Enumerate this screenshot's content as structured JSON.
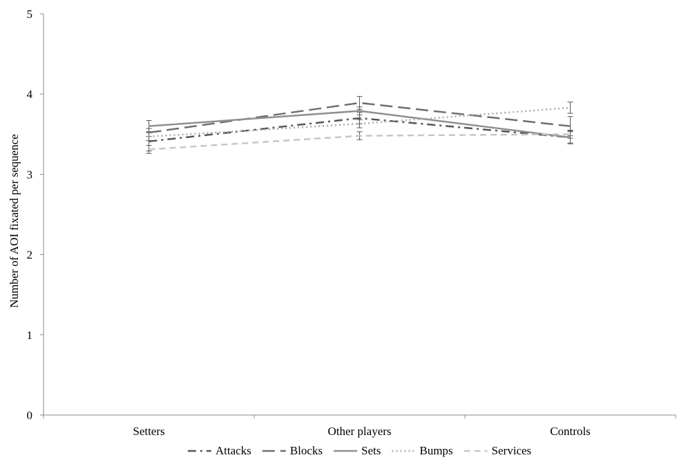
{
  "chart_data": {
    "type": "line",
    "categories": [
      "Setters",
      "Other players",
      "Controls"
    ],
    "ylabel": "Number of AOI fixated per sequence",
    "xlabel": "",
    "ylim": [
      0,
      5
    ],
    "yticks": [
      "0",
      "1",
      "2",
      "3",
      "4",
      "5"
    ],
    "grid": false,
    "legend_position": "bottom",
    "series": [
      {
        "name": "Attacks",
        "values": [
          3.41,
          3.7,
          3.46
        ],
        "error": [
          0.12,
          0.07,
          0.08
        ],
        "color": "#555555",
        "dash": "dashdot"
      },
      {
        "name": "Blocks",
        "values": [
          3.52,
          3.89,
          3.6
        ],
        "error": [
          0.05,
          0.08,
          0.12
        ],
        "color": "#6e6e6e",
        "dash": "longdash"
      },
      {
        "name": "Sets",
        "values": [
          3.6,
          3.79,
          3.46
        ],
        "error": [
          0.07,
          0.05,
          0.07
        ],
        "color": "#8f8f8f",
        "dash": "solid"
      },
      {
        "name": "Bumps",
        "values": [
          3.47,
          3.63,
          3.83
        ],
        "error": [
          0.05,
          0.05,
          0.07
        ],
        "color": "#a8a8a8",
        "dash": "dotted"
      },
      {
        "name": "Services",
        "values": [
          3.31,
          3.48,
          3.5
        ],
        "error": [
          0.05,
          0.05,
          0.05
        ],
        "color": "#c6c6c6",
        "dash": "dashed"
      }
    ]
  }
}
